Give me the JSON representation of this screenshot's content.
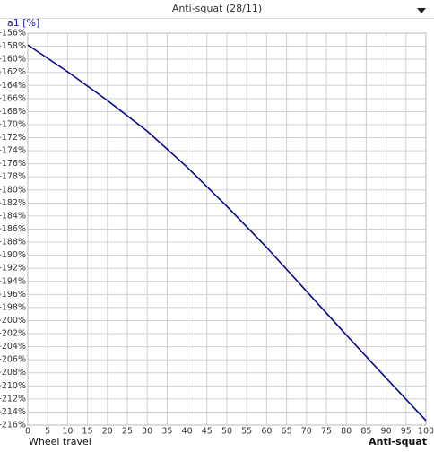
{
  "chart_data": {
    "type": "line",
    "title": "Anti-squat (28/11)",
    "y_label": "a1 [%]",
    "x_label": "Wheel travel",
    "series_label": "Anti-squat",
    "x": [
      0,
      10,
      20,
      30,
      40,
      50,
      60,
      70,
      80,
      90,
      100
    ],
    "series": [
      {
        "name": "Anti-squat",
        "color": "#0a0a8a",
        "values": [
          -157.8,
          -161.9,
          -166.3,
          -171.0,
          -176.5,
          -182.5,
          -188.8,
          -195.5,
          -202.2,
          -208.8,
          -215.3
        ]
      }
    ],
    "xlim": [
      0,
      100
    ],
    "xticks": [
      0,
      5,
      10,
      15,
      20,
      25,
      30,
      35,
      40,
      45,
      50,
      55,
      60,
      65,
      70,
      75,
      80,
      85,
      90,
      95,
      100
    ],
    "ylim": [
      -216,
      -156
    ],
    "yticks": [
      {
        "value": -156,
        "label": "-156%"
      },
      {
        "value": -158,
        "label": "-158%"
      },
      {
        "value": -160,
        "label": "-160%"
      },
      {
        "value": -162,
        "label": "-162%"
      },
      {
        "value": -164,
        "label": "-164%"
      },
      {
        "value": -166,
        "label": "-166%"
      },
      {
        "value": -168,
        "label": "-168%"
      },
      {
        "value": -170,
        "label": "-170%"
      },
      {
        "value": -172,
        "label": "-172%"
      },
      {
        "value": -174,
        "label": "-174%"
      },
      {
        "value": -176,
        "label": "-176%"
      },
      {
        "value": -178,
        "label": "-178%"
      },
      {
        "value": -180,
        "label": "-180%"
      },
      {
        "value": -182,
        "label": "-182%"
      },
      {
        "value": -184,
        "label": "-184%"
      },
      {
        "value": -186,
        "label": "-186%"
      },
      {
        "value": -188,
        "label": "-188%"
      },
      {
        "value": -190,
        "label": "-190%"
      },
      {
        "value": -192,
        "label": "-192%"
      },
      {
        "value": -194,
        "label": "-194%"
      },
      {
        "value": -196,
        "label": "-196%"
      },
      {
        "value": -198,
        "label": "-198%"
      },
      {
        "value": -200,
        "label": "-200%"
      },
      {
        "value": -202,
        "label": "-202%"
      },
      {
        "value": -204,
        "label": "-204%"
      },
      {
        "value": -206,
        "label": "-206%"
      },
      {
        "value": -208,
        "label": "-208%"
      },
      {
        "value": -210,
        "label": "-210%"
      },
      {
        "value": -212,
        "label": "-212%"
      },
      {
        "value": -214,
        "label": "-214%"
      },
      {
        "value": -216,
        "label": "-216%"
      }
    ],
    "grid": true
  }
}
